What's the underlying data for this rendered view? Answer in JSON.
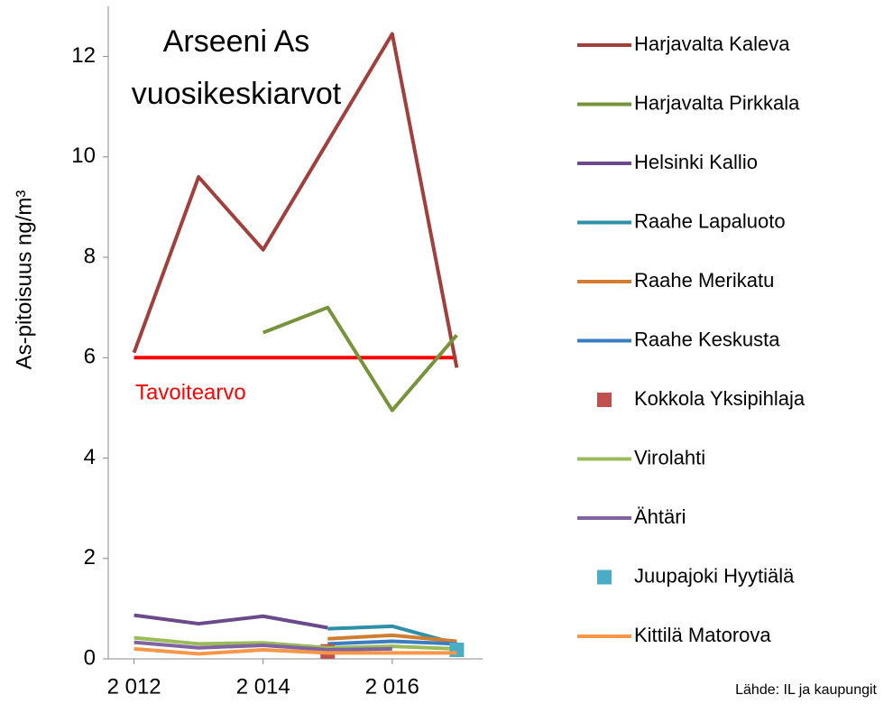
{
  "chart_data": {
    "type": "line",
    "title": [
      "Arseeni  As",
      "vuosikeskiarvot"
    ],
    "y_label": "As-pitoisuus ng/m³",
    "source": "Lähde: IL ja kaupungit",
    "x": [
      2012,
      2013,
      2014,
      2015,
      2016,
      2017
    ],
    "xlim": [
      2011.6,
      2017.4
    ],
    "xticks": [
      {
        "value": 2012,
        "label": "2 012"
      },
      {
        "value": 2014,
        "label": "2 014"
      },
      {
        "value": 2016,
        "label": "2 016"
      }
    ],
    "ylim": [
      0,
      13
    ],
    "yticks": [
      0,
      2,
      4,
      6,
      8,
      10,
      12
    ],
    "target": {
      "value": 6,
      "label": "Tavoitearvo",
      "color": "#ff0000"
    },
    "legend": "right",
    "series": [
      {
        "name": "Harjavalta Kaleva",
        "color": "#a0403c",
        "values": [
          6.1,
          9.6,
          8.15,
          10.3,
          12.45,
          5.8
        ]
      },
      {
        "name": "Harjavalta Pirkkala",
        "color": "#77933c",
        "values": [
          null,
          null,
          6.5,
          7.0,
          4.95,
          6.45
        ]
      },
      {
        "name": "Helsinki Kallio",
        "color": "#6a4a8a",
        "values": [
          0.87,
          0.7,
          0.85,
          0.62,
          null,
          null
        ]
      },
      {
        "name": "Raahe Lapaluoto",
        "color": "#2e8fa8",
        "values": [
          null,
          null,
          null,
          0.6,
          0.65,
          0.3
        ]
      },
      {
        "name": "Raahe Merikatu",
        "color": "#d07d30",
        "values": [
          null,
          null,
          null,
          0.4,
          0.47,
          0.35
        ]
      },
      {
        "name": "Raahe Keskusta",
        "color": "#3a7ec0",
        "values": [
          null,
          null,
          null,
          0.3,
          0.35,
          0.3
        ]
      },
      {
        "name": "Kokkola Yksipihlaja",
        "color": "#c0504d",
        "marker": "square",
        "values": [
          null,
          null,
          null,
          0.15,
          null,
          null
        ]
      },
      {
        "name": "Virolahti",
        "color": "#9bbb59",
        "values": [
          0.42,
          0.3,
          0.32,
          0.22,
          0.25,
          0.2
        ]
      },
      {
        "name": "Ähtäri",
        "color": "#8064a2",
        "values": [
          0.33,
          0.22,
          0.27,
          0.18,
          0.2,
          null
        ]
      },
      {
        "name": "Juupajoki Hyytiälä",
        "color": "#4bacc6",
        "marker": "square",
        "values": [
          null,
          null,
          null,
          null,
          null,
          0.18
        ]
      },
      {
        "name": "Kittilä Matorova",
        "color": "#f79646",
        "values": [
          0.2,
          0.1,
          0.18,
          0.12,
          0.12,
          0.12
        ]
      }
    ]
  }
}
